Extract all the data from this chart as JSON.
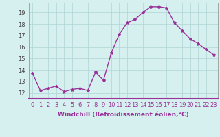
{
  "x": [
    0,
    1,
    2,
    3,
    4,
    5,
    6,
    7,
    8,
    9,
    10,
    11,
    12,
    13,
    14,
    15,
    16,
    17,
    18,
    19,
    20,
    21,
    22,
    23
  ],
  "y": [
    13.7,
    12.2,
    12.4,
    12.6,
    12.1,
    12.3,
    12.4,
    12.2,
    13.8,
    13.1,
    15.5,
    17.1,
    18.1,
    18.4,
    19.0,
    19.5,
    19.5,
    19.4,
    18.1,
    17.4,
    16.7,
    16.3,
    15.8,
    15.3
  ],
  "line_color": "#993399",
  "marker": "*",
  "marker_size": 3,
  "xlabel": "Windchill (Refroidissement éolien,°C)",
  "xlabel_fontsize": 6.5,
  "ylabel_ticks": [
    12,
    13,
    14,
    15,
    16,
    17,
    18,
    19
  ],
  "ylim": [
    11.5,
    19.85
  ],
  "xlim": [
    -0.5,
    23.5
  ],
  "bg_color": "#d6efef",
  "grid_color": "#b0d4d4",
  "tick_fontsize": 6,
  "line_width": 1.0
}
